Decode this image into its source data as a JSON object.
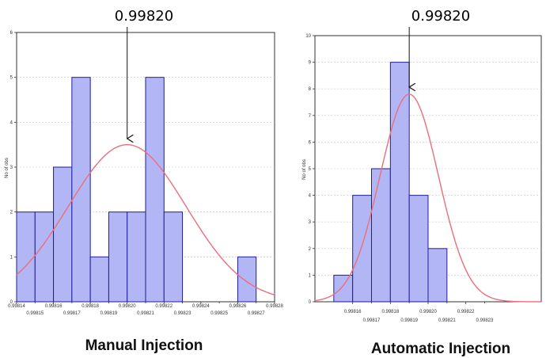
{
  "chart_data": [
    {
      "type": "bar",
      "title": "Manual Injection",
      "annotation": "0.99820",
      "annotation_x": 0.9982,
      "ylabel": "No of obs",
      "ylim": [
        0,
        6
      ],
      "yticks": [
        0,
        1,
        2,
        3,
        4,
        5,
        6
      ],
      "xlim": [
        0.99814,
        0.99828
      ],
      "bin_width": 1e-05,
      "bin_starts": [
        0.99814,
        0.99815,
        0.99816,
        0.99817,
        0.99818,
        0.99819,
        0.9982,
        0.99821,
        0.99822,
        0.99823,
        0.99824,
        0.99825,
        0.99826
      ],
      "values": [
        2,
        2,
        3,
        5,
        1,
        2,
        2,
        5,
        2,
        0,
        0,
        0,
        1
      ],
      "xticks_top": [
        "0.99814",
        "0.99816",
        "0.99818",
        "0.99820",
        "0.99822",
        "0.99824",
        "0.99826",
        "0.99828"
      ],
      "xticks_bottom": [
        "0.99815",
        "0.99817",
        "0.99819",
        "0.99821",
        "0.99823",
        "0.99825",
        "0.99827"
      ],
      "fit": {
        "type": "normal",
        "mean": 0.9982,
        "sd": 3.2e-05,
        "peak": 3.5
      },
      "grid": true,
      "colors": {
        "bar": "#b3b6f4",
        "edge": "#1e1e9a",
        "curve": "#ec6e7c"
      }
    },
    {
      "type": "bar",
      "title": "Automatic Injection",
      "annotation": "0.99820",
      "annotation_x": 0.99819,
      "ylabel": "No of obs",
      "ylim": [
        0,
        10
      ],
      "yticks": [
        0,
        1,
        2,
        3,
        4,
        5,
        6,
        7,
        8,
        9,
        10
      ],
      "xlim": [
        0.99814,
        0.99826
      ],
      "bin_width": 1e-05,
      "bin_starts": [
        0.99815,
        0.99816,
        0.99817,
        0.99818,
        0.99819,
        0.9982,
        0.99821
      ],
      "values": [
        1,
        4,
        5,
        9,
        4,
        2,
        0
      ],
      "xticks_top": [
        "0.99816",
        "0.99818",
        "0.99820",
        "0.99822"
      ],
      "xticks_bottom": [
        "0.99817",
        "0.99819",
        "0.99821",
        "0.99823"
      ],
      "fit": {
        "type": "normal",
        "mean": 0.99819,
        "sd": 1.55e-05,
        "peak": 7.8
      },
      "grid": true,
      "colors": {
        "bar": "#b3b6f4",
        "edge": "#1e1e9a",
        "curve": "#ec6e7c"
      }
    }
  ]
}
